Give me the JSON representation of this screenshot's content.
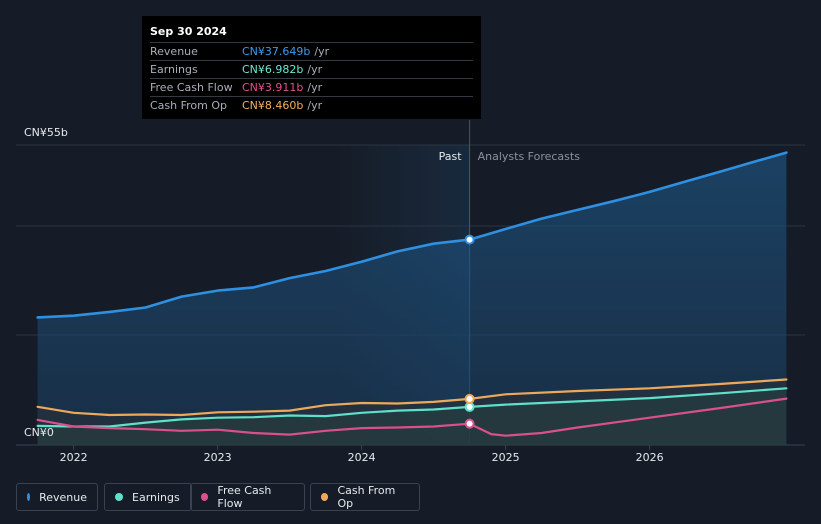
{
  "tooltip": {
    "date": "Sep 30 2024",
    "rows": [
      {
        "label": "Revenue",
        "value": "CN¥37.649b",
        "unit": "/yr",
        "color": "#3d9ae8"
      },
      {
        "label": "Earnings",
        "value": "CN¥6.982b",
        "unit": "/yr",
        "color": "#6ee8cf"
      },
      {
        "label": "Free Cash Flow",
        "value": "CN¥3.911b",
        "unit": "/yr",
        "color": "#e2508e"
      },
      {
        "label": "Cash From Op",
        "value": "CN¥8.460b",
        "unit": "/yr",
        "color": "#f0b05c"
      }
    ]
  },
  "legend": [
    {
      "label": "Revenue",
      "color": "#2f8fe0"
    },
    {
      "label": "Earnings",
      "color": "#5fe0c8"
    },
    {
      "label": "Free Cash Flow",
      "color": "#d9508a"
    },
    {
      "label": "Cash From Op",
      "color": "#eda95a"
    }
  ],
  "chart_data": {
    "type": "area",
    "y_axis_labels": {
      "top": "CN¥55b",
      "bottom": "CN¥0"
    },
    "ylim": [
      0,
      55
    ],
    "xlim": [
      2021.6,
      2026.95
    ],
    "x_ticks": [
      {
        "value": 2022,
        "label": "2022"
      },
      {
        "value": 2023,
        "label": "2023"
      },
      {
        "value": 2024,
        "label": "2024"
      },
      {
        "value": 2025,
        "label": "2025"
      },
      {
        "value": 2026,
        "label": "2026"
      }
    ],
    "divider_x": 2024.75,
    "past_label": "Past",
    "forecast_label": "Analysts Forecasts",
    "series": [
      {
        "name": "Revenue",
        "color": "#2f8fe0",
        "fill": true,
        "x": [
          2021.75,
          2022.0,
          2022.25,
          2022.5,
          2022.75,
          2023.0,
          2023.25,
          2023.5,
          2023.75,
          2024.0,
          2024.25,
          2024.5,
          2024.75,
          2025.0,
          2025.25,
          2025.5,
          2025.75,
          2026.0,
          2026.25,
          2026.5,
          2026.75,
          2026.95
        ],
        "values": [
          23.4,
          23.7,
          24.4,
          25.2,
          27.2,
          28.3,
          28.9,
          30.6,
          31.9,
          33.6,
          35.5,
          36.9,
          37.65,
          39.6,
          41.5,
          43.1,
          44.7,
          46.4,
          48.3,
          50.2,
          52.1,
          53.6
        ]
      },
      {
        "name": "Earnings",
        "color": "#5fe0c8",
        "fill": false,
        "x": [
          2021.75,
          2022.0,
          2022.25,
          2022.5,
          2022.75,
          2023.0,
          2023.25,
          2023.5,
          2023.75,
          2024.0,
          2024.25,
          2024.5,
          2024.75,
          2025.0,
          2025.5,
          2026.0,
          2026.5,
          2026.95
        ],
        "values": [
          3.5,
          3.4,
          3.4,
          4.1,
          4.7,
          5.0,
          5.1,
          5.4,
          5.3,
          5.9,
          6.3,
          6.5,
          6.98,
          7.4,
          8.0,
          8.6,
          9.5,
          10.4
        ]
      },
      {
        "name": "Free Cash Flow",
        "color": "#d9508a",
        "fill": false,
        "x": [
          2021.75,
          2022.0,
          2022.25,
          2022.5,
          2022.75,
          2023.0,
          2023.25,
          2023.5,
          2023.75,
          2024.0,
          2024.25,
          2024.5,
          2024.75,
          2024.9,
          2025.0,
          2025.25,
          2025.5,
          2026.0,
          2026.5,
          2026.95
        ],
        "values": [
          4.6,
          3.4,
          3.1,
          2.9,
          2.6,
          2.8,
          2.2,
          1.9,
          2.6,
          3.1,
          3.2,
          3.4,
          3.91,
          2.0,
          1.7,
          2.2,
          3.2,
          5.0,
          6.8,
          8.5
        ]
      },
      {
        "name": "Cash From Op",
        "color": "#eda95a",
        "fill": false,
        "x": [
          2021.75,
          2022.0,
          2022.25,
          2022.5,
          2022.75,
          2023.0,
          2023.25,
          2023.5,
          2023.75,
          2024.0,
          2024.25,
          2024.5,
          2024.75,
          2025.0,
          2025.5,
          2026.0,
          2026.5,
          2026.95
        ],
        "values": [
          7.0,
          5.9,
          5.5,
          5.6,
          5.5,
          6.0,
          6.1,
          6.3,
          7.3,
          7.7,
          7.6,
          7.9,
          8.46,
          9.3,
          9.9,
          10.4,
          11.2,
          12.0
        ]
      }
    ]
  }
}
